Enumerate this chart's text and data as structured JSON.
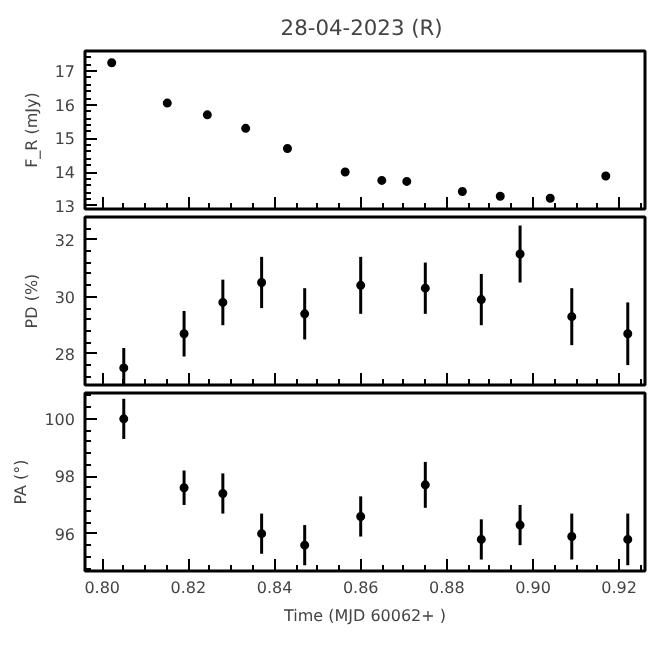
{
  "chart_data": [
    {
      "type": "scatter",
      "title": "28-04-2023  (R)",
      "ylabel": "F_R (mJy)",
      "marker": "circle",
      "tick_labels": "y",
      "grid": false,
      "xlim": [
        0.796,
        0.926
      ],
      "xticks": [
        0.8,
        0.82,
        0.84,
        0.86,
        0.88,
        0.9,
        0.92
      ],
      "ylim": [
        12.9,
        17.6
      ],
      "yticks": [
        13,
        14,
        15,
        16,
        17
      ],
      "x": [
        0.8022,
        0.8151,
        0.8244,
        0.8333,
        0.843,
        0.8564,
        0.8649,
        0.8707,
        0.8836,
        0.8924,
        0.904,
        0.9169
      ],
      "series": [
        {
          "color": "#000000",
          "values": [
            17.25,
            16.05,
            15.7,
            15.3,
            14.7,
            14.0,
            13.75,
            13.72,
            13.42,
            13.28,
            13.22,
            13.88
          ],
          "errors": [
            0.1,
            0.07,
            0.1,
            0.08,
            0.1,
            0.1,
            0.1,
            0.1,
            0.1,
            0.1,
            0.1,
            0.12
          ]
        }
      ]
    },
    {
      "type": "scatter",
      "ylabel": "PD (%)",
      "marker": "circle",
      "tick_labels": "y",
      "grid": false,
      "xlim": [
        0.796,
        0.926
      ],
      "xticks": [
        0.8,
        0.82,
        0.84,
        0.86,
        0.88,
        0.9,
        0.92
      ],
      "ylim": [
        26.9,
        32.8
      ],
      "yticks": [
        28,
        30,
        32
      ],
      "x": [
        0.805,
        0.819,
        0.828,
        0.837,
        0.847,
        0.86,
        0.875,
        0.888,
        0.897,
        0.909,
        0.922
      ],
      "series": [
        {
          "color": "#000000",
          "values": [
            27.5,
            28.7,
            29.8,
            30.5,
            29.4,
            30.4,
            30.3,
            29.9,
            31.5,
            29.3,
            28.7
          ],
          "errors": [
            0.7,
            0.8,
            0.8,
            0.9,
            0.9,
            1.0,
            0.9,
            0.9,
            1.0,
            1.0,
            1.1
          ]
        }
      ]
    },
    {
      "type": "scatter",
      "xlabel": "Time (MJD 60062+ )",
      "ylabel": "PA (°)",
      "marker": "circle",
      "grid": false,
      "xlim": [
        0.796,
        0.926
      ],
      "xticks": [
        {
          "value": 0.8,
          "label": "0.80"
        },
        0.82,
        0.84,
        0.86,
        0.88,
        {
          "value": 0.9,
          "label": "0.90"
        },
        0.92
      ],
      "ylim": [
        94.7,
        100.9
      ],
      "yticks": [
        96,
        98,
        100
      ],
      "x": [
        0.805,
        0.819,
        0.828,
        0.837,
        0.847,
        0.86,
        0.875,
        0.888,
        0.897,
        0.909,
        0.922
      ],
      "series": [
        {
          "color": "#000000",
          "values": [
            100.0,
            97.6,
            97.4,
            96.0,
            95.6,
            96.6,
            97.7,
            95.8,
            96.3,
            95.9,
            95.8
          ],
          "errors": [
            0.7,
            0.6,
            0.7,
            0.7,
            0.7,
            0.7,
            0.8,
            0.7,
            0.7,
            0.8,
            0.9
          ]
        }
      ]
    }
  ]
}
